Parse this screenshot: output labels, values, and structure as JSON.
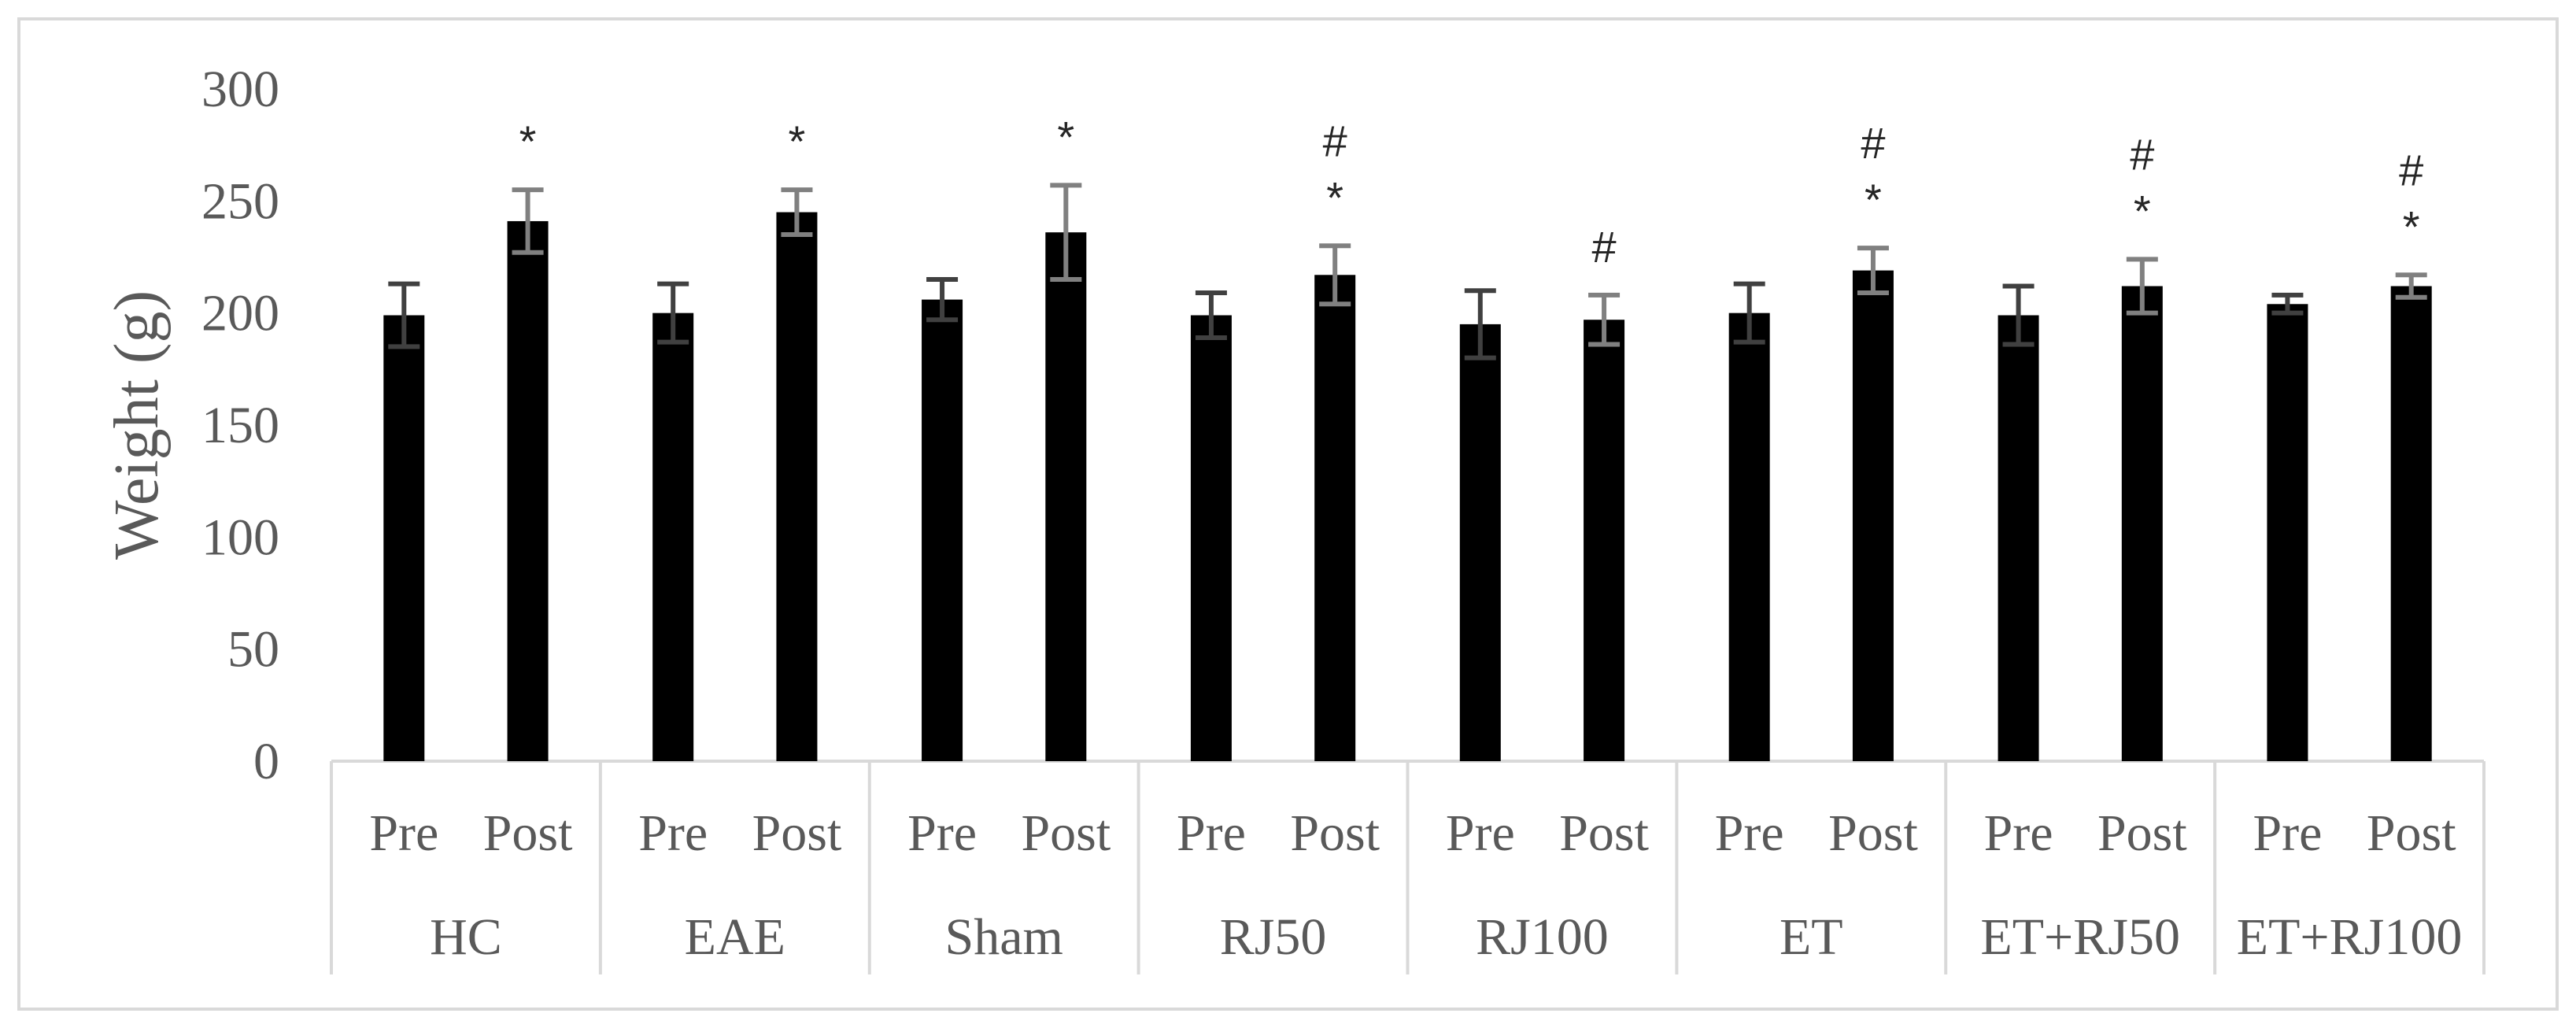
{
  "chart_data": {
    "type": "bar",
    "title": "",
    "xlabel": "",
    "ylabel": "Weight (g)",
    "ylim": [
      0,
      300
    ],
    "yticks": [
      0,
      50,
      100,
      150,
      200,
      250,
      300
    ],
    "grid": false,
    "legend": "none",
    "bar_color": "#000000",
    "error_bar_color_pre": "#404040",
    "error_bar_color_post": "#808080",
    "separator_color": "#d9d9d9",
    "groups": [
      {
        "name": "HC",
        "bars": [
          {
            "label": "Pre",
            "value": 199,
            "error": 14,
            "marks": []
          },
          {
            "label": "Post",
            "value": 241,
            "error": 14,
            "marks": [
              "*"
            ]
          }
        ]
      },
      {
        "name": "EAE",
        "bars": [
          {
            "label": "Pre",
            "value": 200,
            "error": 13,
            "marks": []
          },
          {
            "label": "Post",
            "value": 245,
            "error": 10,
            "marks": [
              "*"
            ]
          }
        ]
      },
      {
        "name": "Sham",
        "bars": [
          {
            "label": "Pre",
            "value": 206,
            "error": 9,
            "marks": []
          },
          {
            "label": "Post",
            "value": 236,
            "error": 21,
            "marks": [
              "*"
            ]
          }
        ]
      },
      {
        "name": "RJ50",
        "bars": [
          {
            "label": "Pre",
            "value": 199,
            "error": 10,
            "marks": []
          },
          {
            "label": "Post",
            "value": 217,
            "error": 13,
            "marks": [
              "#",
              "*"
            ]
          }
        ]
      },
      {
        "name": "RJ100",
        "bars": [
          {
            "label": "Pre",
            "value": 195,
            "error": 15,
            "marks": []
          },
          {
            "label": "Post",
            "value": 197,
            "error": 11,
            "marks": [
              "#"
            ]
          }
        ]
      },
      {
        "name": "ET",
        "bars": [
          {
            "label": "Pre",
            "value": 200,
            "error": 13,
            "marks": []
          },
          {
            "label": "Post",
            "value": 219,
            "error": 10,
            "marks": [
              "#",
              "*"
            ]
          }
        ]
      },
      {
        "name": "ET+RJ50",
        "bars": [
          {
            "label": "Pre",
            "value": 199,
            "error": 13,
            "marks": []
          },
          {
            "label": "Post",
            "value": 212,
            "error": 12,
            "marks": [
              "#",
              "*"
            ]
          }
        ]
      },
      {
        "name": "ET+RJ100",
        "bars": [
          {
            "label": "Pre",
            "value": 204,
            "error": 4,
            "marks": []
          },
          {
            "label": "Post",
            "value": 212,
            "error": 5,
            "marks": [
              "#",
              "*"
            ]
          }
        ]
      }
    ]
  }
}
